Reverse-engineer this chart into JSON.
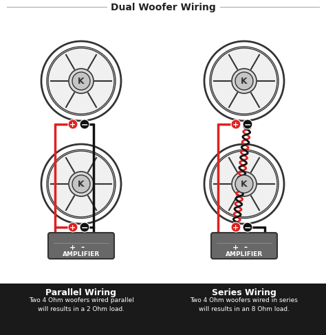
{
  "title": "Dual Woofer Wiring",
  "title_color": "#222222",
  "bg_color": "#ffffff",
  "footer_bg": "#1a1a1a",
  "left_label_bold": "Parallel Wiring",
  "left_label_text": "Two 4 Ohm woofers wired parallel\nwill results in a 2 Ohm load.",
  "right_label_bold": "Series Wiring",
  "right_label_text": "Two 4 Ohm woofers wired in series\nwill results in an 8 Ohm load.",
  "red_color": "#e02020",
  "black_color": "#111111",
  "gray_color": "#888888",
  "light_gray": "#cccccc",
  "amp_color": "#555555",
  "wire_lw": 2.5,
  "speaker_outline": "#333333"
}
